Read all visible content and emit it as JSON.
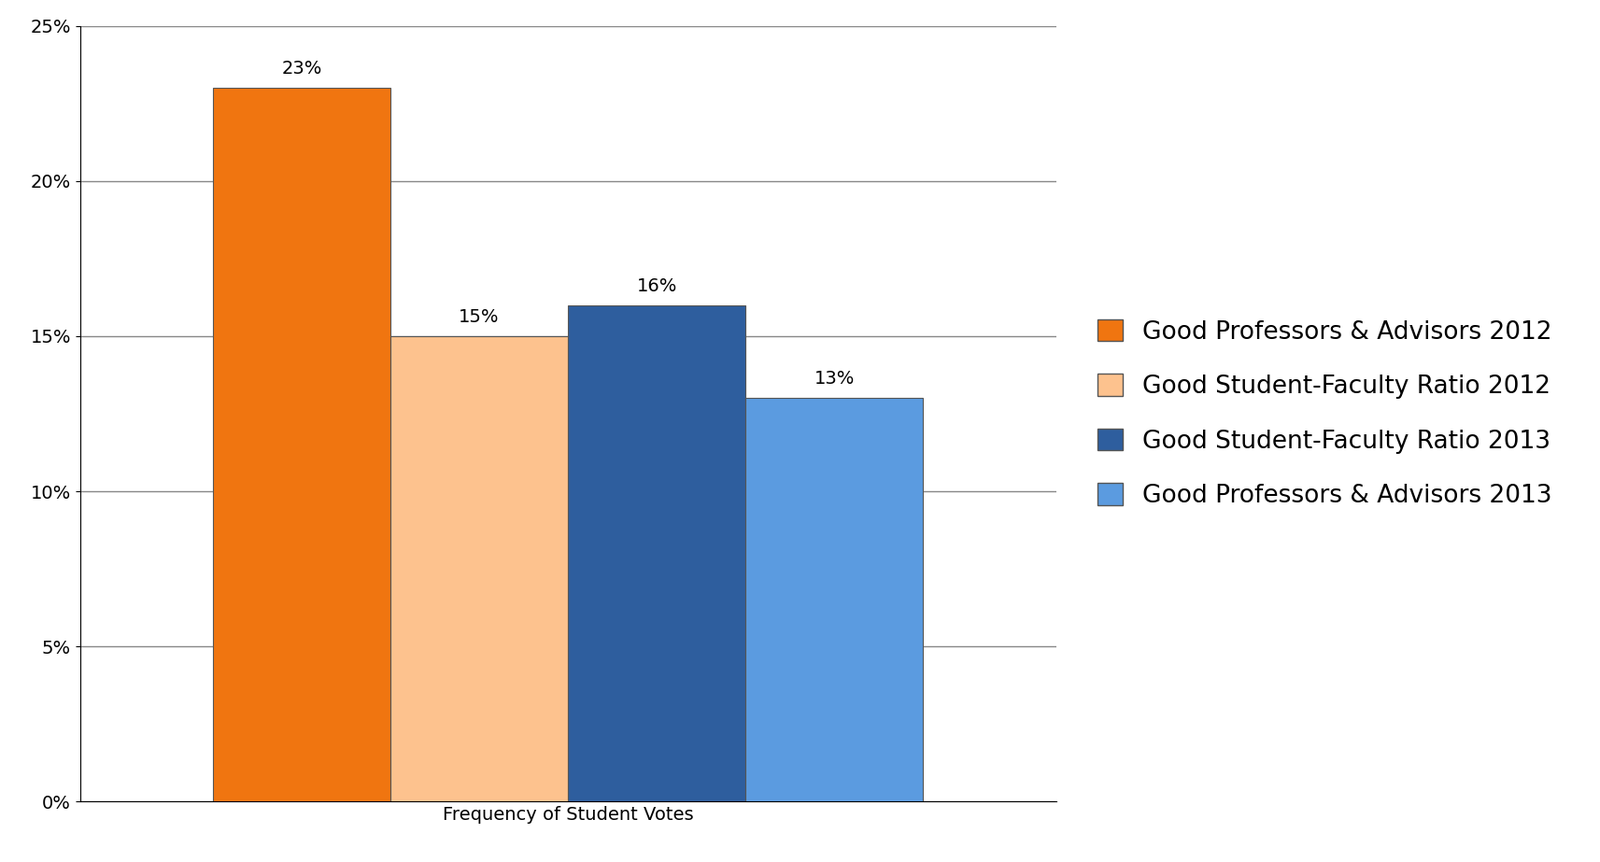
{
  "chart_data": {
    "type": "bar",
    "categories": [
      "Frequency of Student Votes"
    ],
    "series": [
      {
        "name": "Good Professors & Advisors 2012",
        "color": "#f07510",
        "values": [
          23
        ],
        "value_labels": [
          "23%"
        ]
      },
      {
        "name": "Good Student-Faculty Ratio 2012",
        "color": "#fdc28e",
        "values": [
          15
        ],
        "value_labels": [
          "15%"
        ]
      },
      {
        "name": "Good Student-Faculty Ratio 2013",
        "color": "#2e5e9e",
        "values": [
          16
        ],
        "value_labels": [
          "16%"
        ]
      },
      {
        "name": "Good Professors & Advisors 2013",
        "color": "#5b9be0",
        "values": [
          13
        ],
        "value_labels": [
          "13%"
        ]
      }
    ],
    "ylim": [
      0,
      25
    ],
    "yticks": [
      {
        "value": 0,
        "label": "0%"
      },
      {
        "value": 5,
        "label": "5%"
      },
      {
        "value": 10,
        "label": "10%"
      },
      {
        "value": 15,
        "label": "15%"
      },
      {
        "value": 20,
        "label": "20%"
      },
      {
        "value": 25,
        "label": "25%"
      }
    ],
    "grid": true,
    "legend": "center left",
    "data_labels": true
  }
}
